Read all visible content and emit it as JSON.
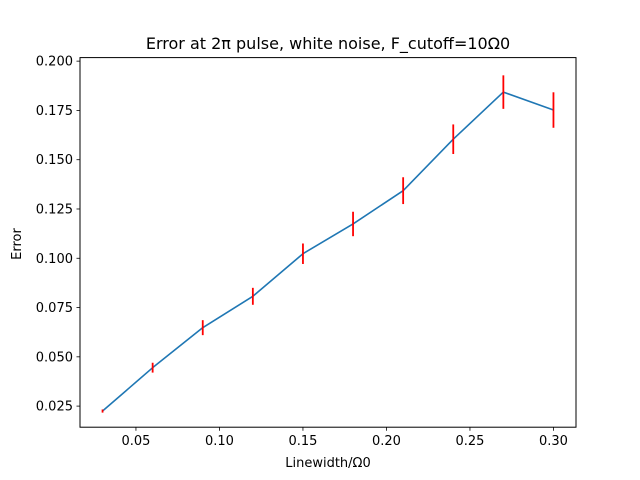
{
  "chart_data": {
    "type": "line",
    "title": "Error at 2π pulse, white noise, F_cutoff=10Ω0",
    "xlabel": "Linewidth/Ω0",
    "ylabel": "Error",
    "xlim": [
      0.0165,
      0.3135
    ],
    "ylim": [
      0.0143,
      0.2018
    ],
    "x_ticks": [
      0.05,
      0.1,
      0.15,
      0.2,
      0.25,
      0.3
    ],
    "x_tick_labels": [
      "0.05",
      "0.10",
      "0.15",
      "0.20",
      "0.25",
      "0.30"
    ],
    "y_ticks": [
      0.025,
      0.05,
      0.075,
      0.1,
      0.125,
      0.15,
      0.175,
      0.2
    ],
    "y_tick_labels": [
      "0.025",
      "0.050",
      "0.075",
      "0.100",
      "0.125",
      "0.150",
      "0.175",
      "0.200"
    ],
    "grid": false,
    "series": [
      {
        "x": [
          0.03,
          0.06,
          0.09,
          0.12,
          0.15,
          0.18,
          0.21,
          0.24,
          0.27,
          0.3
        ],
        "values": [
          0.0225,
          0.0445,
          0.0648,
          0.0807,
          0.1023,
          0.1174,
          0.1343,
          0.1604,
          0.1843,
          0.1752
        ],
        "errors": [
          0.0008,
          0.0025,
          0.0038,
          0.0043,
          0.0052,
          0.0062,
          0.0068,
          0.0075,
          0.0085,
          0.009
        ],
        "line_color": "#1f77b4",
        "error_color": "#ff0000"
      }
    ]
  }
}
